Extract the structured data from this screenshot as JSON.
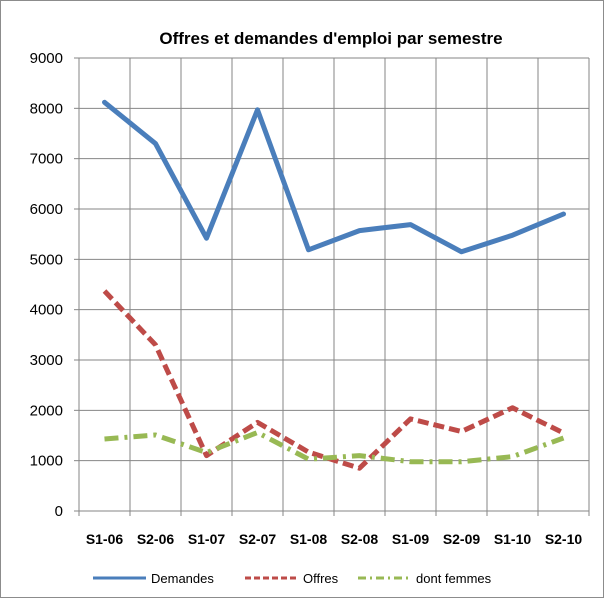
{
  "chart_data": {
    "type": "line",
    "title": "Offres et demandes d'emploi par semestre",
    "xlabel": "",
    "ylabel": "",
    "categories": [
      "S1-06",
      "S2-06",
      "S1-07",
      "S2-07",
      "S1-08",
      "S2-08",
      "S1-09",
      "S2-09",
      "S1-10",
      "S2-10"
    ],
    "ylim": [
      0,
      9000
    ],
    "yticks": [
      0,
      1000,
      2000,
      3000,
      4000,
      5000,
      6000,
      7000,
      8000,
      9000
    ],
    "grid": "both",
    "legend_position": "bottom",
    "series": [
      {
        "name": "Demandes",
        "color": "#4a7ebb",
        "style": "solid",
        "values": [
          8120,
          7300,
          5420,
          7970,
          5190,
          5570,
          5690,
          5150,
          5480,
          5900
        ]
      },
      {
        "name": "Offres",
        "color": "#be4b48",
        "style": "dashed",
        "values": [
          4370,
          3300,
          1100,
          1760,
          1170,
          850,
          1830,
          1580,
          2050,
          1550
        ]
      },
      {
        "name": "dont femmes",
        "color": "#98b954",
        "style": "dashdot",
        "values": [
          1430,
          1510,
          1160,
          1560,
          1030,
          1100,
          980,
          980,
          1080,
          1450
        ]
      }
    ]
  }
}
